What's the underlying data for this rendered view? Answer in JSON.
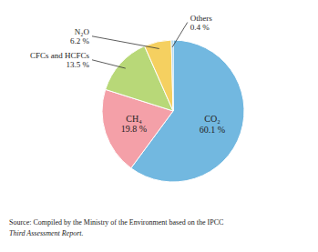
{
  "chart_data": {
    "type": "pie",
    "categories": [
      "CO₂",
      "CH₄",
      "CFCs and HCFCs",
      "N₂O",
      "Others"
    ],
    "values": [
      60.1,
      19.8,
      13.5,
      6.2,
      0.4
    ],
    "value_labels": [
      "60.1 %",
      "19.8 %",
      "13.5 %",
      "6.2 %",
      "0.4 %"
    ],
    "colors": [
      "#72b8e0",
      "#f4a0a8",
      "#b8d878",
      "#f5d060",
      "#72b8e0"
    ],
    "data_labels": true,
    "annotations": [
      "Source: Compiled by the Ministry of the Environment based on the IPCC",
      "Third Assessment Report."
    ]
  }
}
